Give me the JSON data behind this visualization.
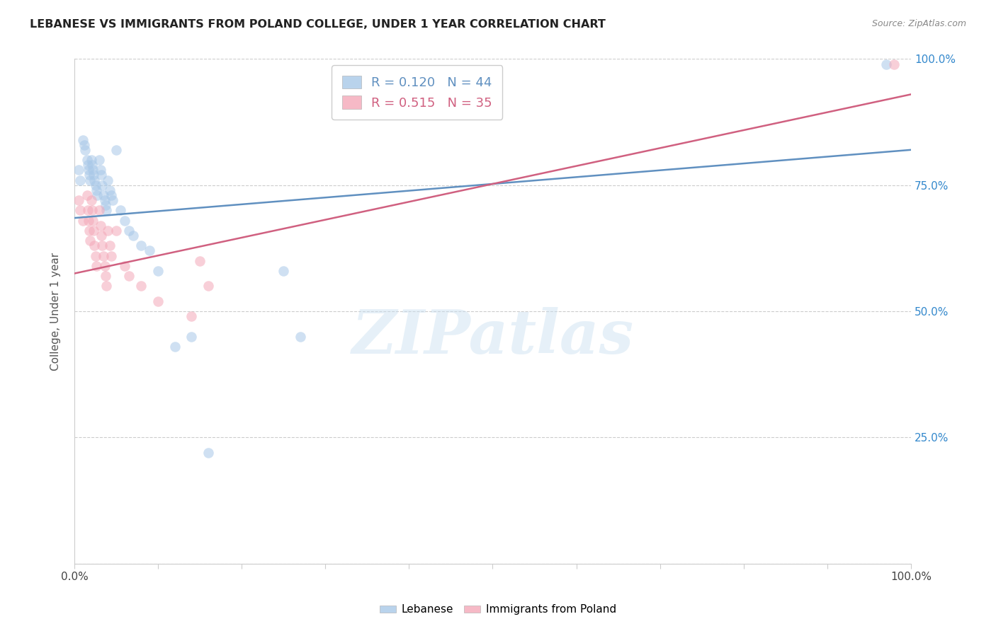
{
  "title": "LEBANESE VS IMMIGRANTS FROM POLAND COLLEGE, UNDER 1 YEAR CORRELATION CHART",
  "source": "Source: ZipAtlas.com",
  "ylabel": "College, Under 1 year",
  "xlim": [
    0,
    1.0
  ],
  "ylim": [
    0,
    1.0
  ],
  "grid_color": "#cccccc",
  "background_color": "#ffffff",
  "blue_color": "#a8c8e8",
  "pink_color": "#f4a8b8",
  "blue_line_color": "#6090c0",
  "pink_line_color": "#d06080",
  "blue_R": 0.12,
  "blue_N": 44,
  "pink_R": 0.515,
  "pink_N": 35,
  "right_tick_color": "#3388cc",
  "watermark_text": "ZIPatlas",
  "blue_points": [
    [
      0.005,
      0.78
    ],
    [
      0.007,
      0.76
    ],
    [
      0.01,
      0.84
    ],
    [
      0.012,
      0.83
    ],
    [
      0.013,
      0.82
    ],
    [
      0.015,
      0.8
    ],
    [
      0.016,
      0.79
    ],
    [
      0.017,
      0.78
    ],
    [
      0.018,
      0.77
    ],
    [
      0.019,
      0.76
    ],
    [
      0.02,
      0.8
    ],
    [
      0.021,
      0.79
    ],
    [
      0.022,
      0.78
    ],
    [
      0.023,
      0.77
    ],
    [
      0.024,
      0.76
    ],
    [
      0.025,
      0.75
    ],
    [
      0.026,
      0.74
    ],
    [
      0.027,
      0.73
    ],
    [
      0.03,
      0.8
    ],
    [
      0.031,
      0.78
    ],
    [
      0.032,
      0.77
    ],
    [
      0.033,
      0.75
    ],
    [
      0.035,
      0.73
    ],
    [
      0.036,
      0.72
    ],
    [
      0.037,
      0.71
    ],
    [
      0.038,
      0.7
    ],
    [
      0.04,
      0.76
    ],
    [
      0.042,
      0.74
    ],
    [
      0.044,
      0.73
    ],
    [
      0.046,
      0.72
    ],
    [
      0.05,
      0.82
    ],
    [
      0.055,
      0.7
    ],
    [
      0.06,
      0.68
    ],
    [
      0.065,
      0.66
    ],
    [
      0.07,
      0.65
    ],
    [
      0.08,
      0.63
    ],
    [
      0.09,
      0.62
    ],
    [
      0.1,
      0.58
    ],
    [
      0.12,
      0.43
    ],
    [
      0.14,
      0.45
    ],
    [
      0.16,
      0.22
    ],
    [
      0.25,
      0.58
    ],
    [
      0.27,
      0.45
    ],
    [
      0.97,
      0.99
    ]
  ],
  "pink_points": [
    [
      0.005,
      0.72
    ],
    [
      0.007,
      0.7
    ],
    [
      0.01,
      0.68
    ],
    [
      0.015,
      0.73
    ],
    [
      0.016,
      0.7
    ],
    [
      0.017,
      0.68
    ],
    [
      0.018,
      0.66
    ],
    [
      0.019,
      0.64
    ],
    [
      0.02,
      0.72
    ],
    [
      0.021,
      0.7
    ],
    [
      0.022,
      0.68
    ],
    [
      0.023,
      0.66
    ],
    [
      0.024,
      0.63
    ],
    [
      0.025,
      0.61
    ],
    [
      0.026,
      0.59
    ],
    [
      0.03,
      0.7
    ],
    [
      0.031,
      0.67
    ],
    [
      0.032,
      0.65
    ],
    [
      0.033,
      0.63
    ],
    [
      0.035,
      0.61
    ],
    [
      0.036,
      0.59
    ],
    [
      0.037,
      0.57
    ],
    [
      0.038,
      0.55
    ],
    [
      0.04,
      0.66
    ],
    [
      0.042,
      0.63
    ],
    [
      0.044,
      0.61
    ],
    [
      0.05,
      0.66
    ],
    [
      0.06,
      0.59
    ],
    [
      0.065,
      0.57
    ],
    [
      0.08,
      0.55
    ],
    [
      0.1,
      0.52
    ],
    [
      0.14,
      0.49
    ],
    [
      0.15,
      0.6
    ],
    [
      0.16,
      0.55
    ],
    [
      0.98,
      0.99
    ]
  ]
}
